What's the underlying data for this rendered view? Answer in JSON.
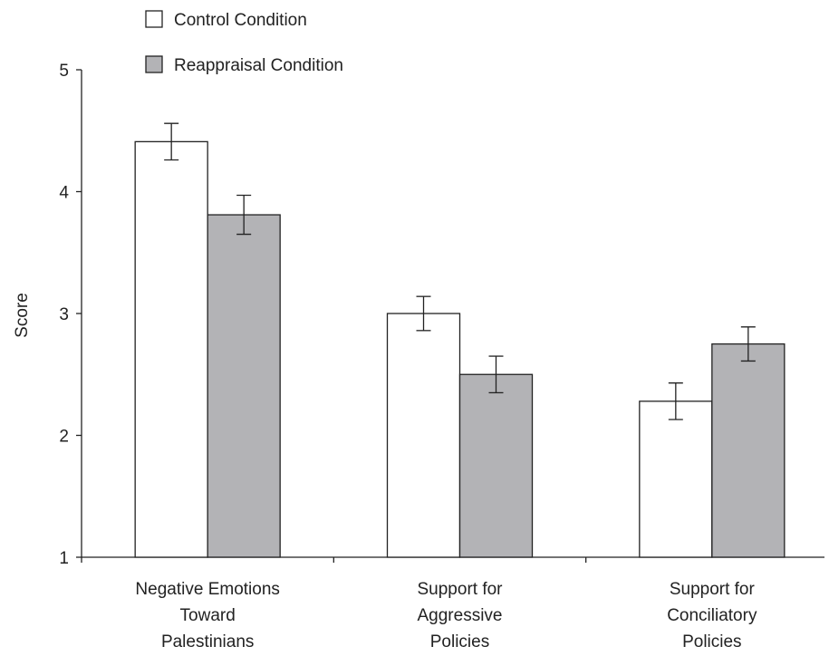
{
  "chart_data": {
    "type": "bar",
    "categories": [
      [
        "Negative Emotions",
        "Toward",
        "Palestinians"
      ],
      [
        "Support for",
        "Aggressive",
        "Policies"
      ],
      [
        "Support for",
        "Conciliatory",
        "Policies"
      ]
    ],
    "series": [
      {
        "name": "Control Condition",
        "color": "#ffffff",
        "values": [
          4.41,
          3.0,
          2.28
        ],
        "error": [
          0.15,
          0.14,
          0.15
        ]
      },
      {
        "name": "Reappraisal Condition",
        "color": "#b3b3b6",
        "values": [
          3.81,
          2.5,
          2.75
        ],
        "error": [
          0.16,
          0.15,
          0.14
        ]
      }
    ],
    "xlabel": "",
    "ylabel": "Score",
    "ylim": [
      1,
      5
    ],
    "yticks": [
      "1",
      "2",
      "3",
      "4",
      "5"
    ],
    "legend_position": "top-left",
    "grid": false
  }
}
